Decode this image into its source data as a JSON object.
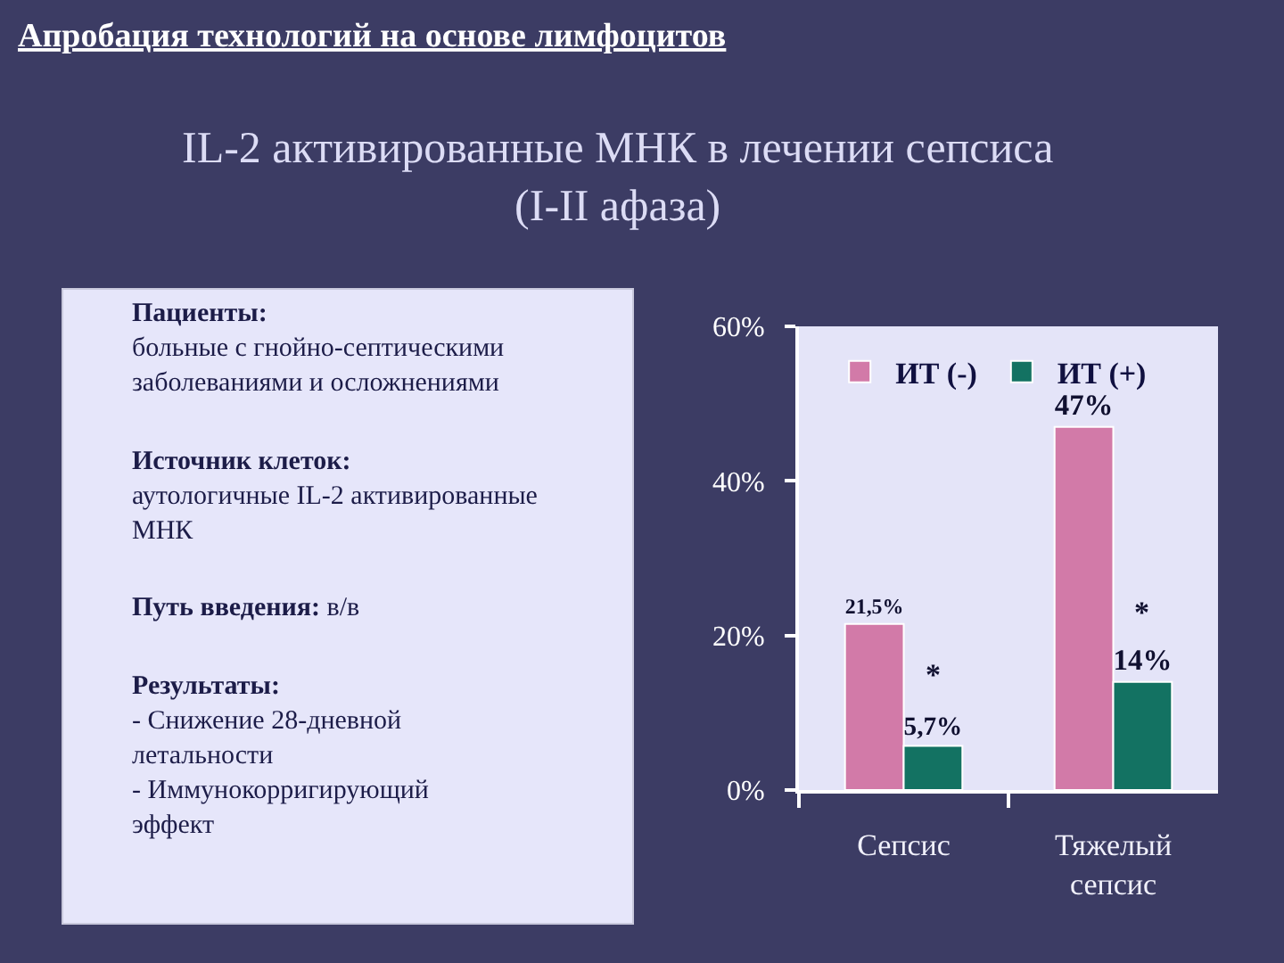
{
  "chart_data": [
    {
      "type": "other",
      "title": "Апробация технологий на основе лимфоцитов",
      "subtitle": "IL-2 активированные МНК в лечении сепсиса\n(I-II афаза)",
      "annotations": [
        "Пациенты:\nбольные с гнойно-септическими\nзаболеваниями и осложнениями",
        "Источник клеток:\nаутологичные IL-2 активированные\nМНК",
        "Путь введения: в/в",
        "Результаты:\n- Снижение 28-дневной\nлетальности\n- Иммунокорригирующий\nэффект"
      ]
    },
    {
      "type": "bar",
      "categories": [
        "Сепсис",
        "Тяжелый\nсепсис"
      ],
      "series": [
        {
          "name": "ИТ (-)",
          "color": "#d27aa8",
          "values": [
            21.5,
            47
          ],
          "value_labels": [
            "21,5%",
            "47%"
          ]
        },
        {
          "name": "ИТ (+)",
          "color": "#137262",
          "values": [
            5.7,
            14
          ],
          "value_labels": [
            "5,7%",
            "14%"
          ]
        }
      ],
      "ylim": [
        0,
        60
      ],
      "yticks": [
        {
          "value": 0,
          "label": "0%"
        },
        {
          "value": 20,
          "label": "20%"
        },
        {
          "value": 40,
          "label": "40%"
        },
        {
          "value": 60,
          "label": "60%"
        }
      ],
      "legend": "top left",
      "annotations": [
        {
          "text": "*",
          "x": "Сепсис",
          "y": 15
        },
        {
          "text": "*",
          "x": "Тяжелый\nсепсис",
          "y": 23
        }
      ]
    }
  ]
}
